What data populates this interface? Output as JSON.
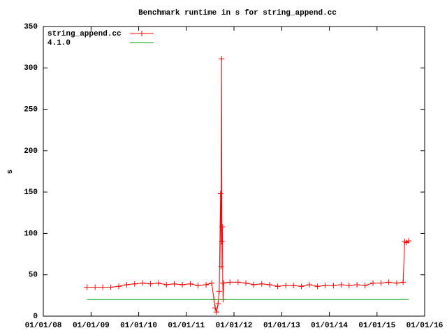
{
  "chart_data": {
    "type": "line",
    "title": "Benchmark runtime in s for string_append.cc",
    "y_label": "s",
    "xlim": [
      "2008-01-01",
      "2016-01-01"
    ],
    "xticks": [
      {
        "value": "2008-01-01",
        "label": "01/01/08"
      },
      {
        "value": "2009-01-01",
        "label": "01/01/09"
      },
      {
        "value": "2010-01-01",
        "label": "01/01/10"
      },
      {
        "value": "2011-01-01",
        "label": "01/01/11"
      },
      {
        "value": "2012-01-01",
        "label": "01/01/12"
      },
      {
        "value": "2013-01-01",
        "label": "01/01/13"
      },
      {
        "value": "2014-01-01",
        "label": "01/01/14"
      },
      {
        "value": "2015-01-01",
        "label": "01/01/15"
      },
      {
        "value": "2016-01-01",
        "label": "01/01/16"
      }
    ],
    "ylim": [
      0,
      350
    ],
    "yticks": [
      0,
      50,
      100,
      150,
      200,
      250,
      300,
      350
    ],
    "legend": "top-left",
    "series": [
      {
        "name": "string_append.cc",
        "color": "#ff0000",
        "marker": "plus",
        "x": [
          "2008-12-01",
          "2009-02-01",
          "2009-04-01",
          "2009-06-01",
          "2009-08-01",
          "2009-10-01",
          "2009-12-01",
          "2010-02-01",
          "2010-04-01",
          "2010-06-01",
          "2010-08-01",
          "2010-10-01",
          "2010-12-01",
          "2011-02-01",
          "2011-04-01",
          "2011-06-01",
          "2011-07-15",
          "2011-08-01",
          "2011-08-10",
          "2011-08-20",
          "2011-09-01",
          "2011-09-10",
          "2011-09-20",
          "2011-09-24",
          "2011-09-28",
          "2011-10-01",
          "2011-10-04",
          "2011-10-07",
          "2011-10-10",
          "2011-10-15",
          "2011-12-01",
          "2012-02-01",
          "2012-04-01",
          "2012-06-01",
          "2012-08-01",
          "2012-10-01",
          "2012-12-01",
          "2013-02-01",
          "2013-04-01",
          "2013-06-01",
          "2013-08-01",
          "2013-10-01",
          "2013-12-01",
          "2014-02-01",
          "2014-04-01",
          "2014-06-01",
          "2014-08-01",
          "2014-10-01",
          "2014-12-01",
          "2015-02-01",
          "2015-04-01",
          "2015-06-01",
          "2015-07-20",
          "2015-08-01",
          "2015-08-15",
          "2015-09-01"
        ],
        "values": [
          35,
          35,
          35,
          35,
          36,
          38,
          39,
          40,
          39,
          40,
          38,
          39,
          38,
          39,
          37,
          38,
          40,
          20,
          10,
          5,
          15,
          30,
          148,
          60,
          311,
          90,
          108,
          40,
          20,
          40,
          41,
          41,
          40,
          38,
          39,
          38,
          36,
          37,
          37,
          36,
          38,
          36,
          37,
          37,
          38,
          37,
          38,
          37,
          40,
          40,
          41,
          40,
          41,
          90,
          89,
          91
        ]
      },
      {
        "name": "4.1.0",
        "color": "#00a000",
        "marker": "none",
        "x": [
          "2008-12-01",
          "2015-09-01"
        ],
        "values": [
          20,
          20
        ]
      }
    ]
  }
}
